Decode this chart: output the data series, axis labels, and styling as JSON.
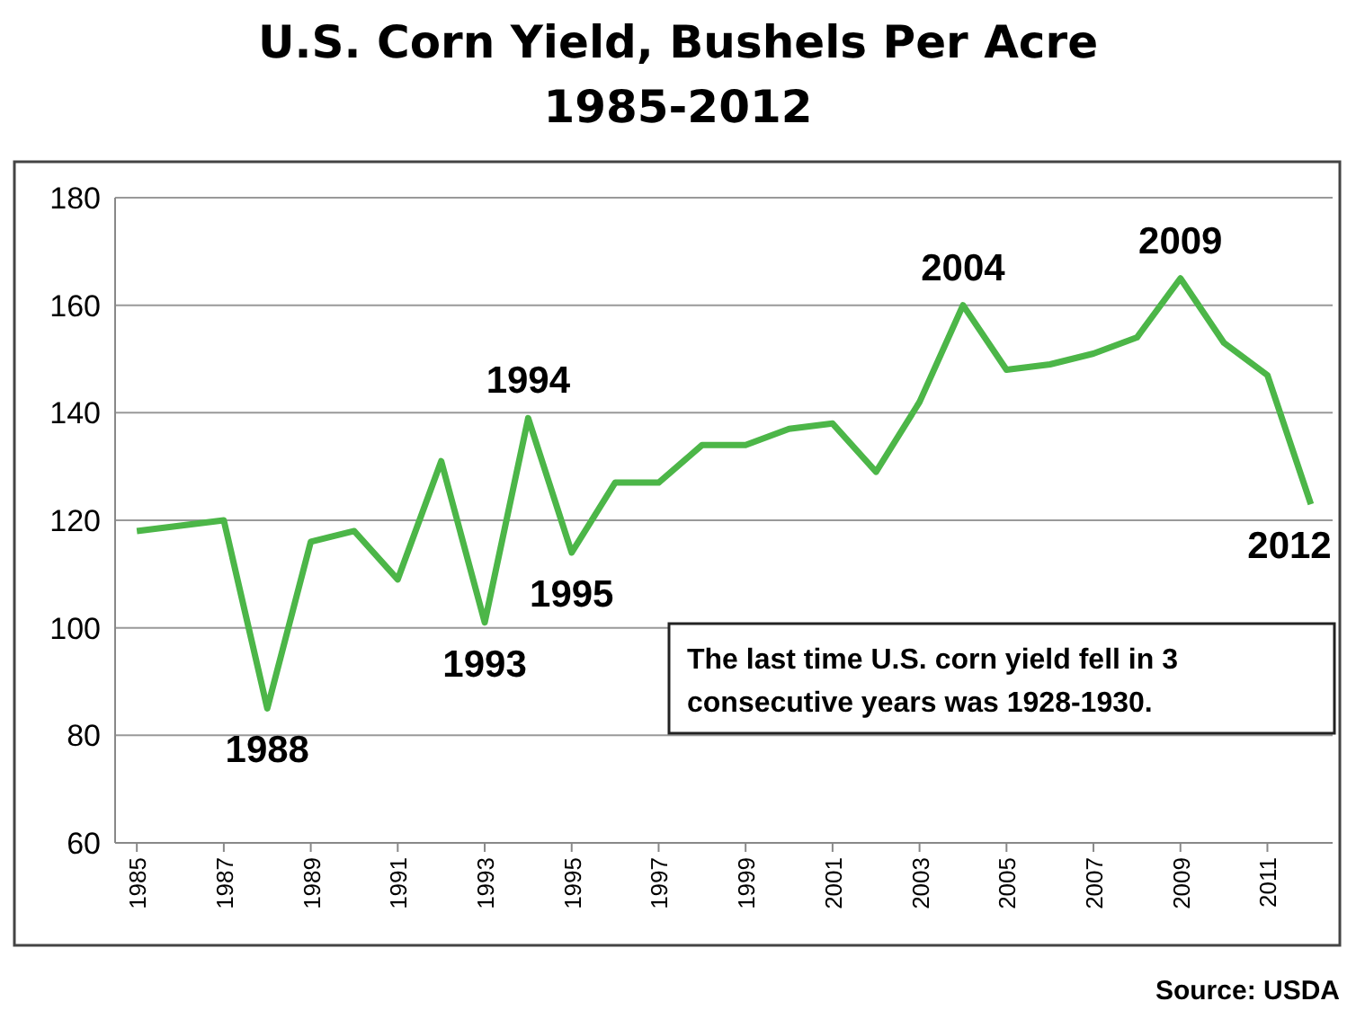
{
  "chart_data": {
    "type": "line",
    "title": "U.S. Corn Yield, Bushels Per Acre",
    "subtitle": "1985-2012",
    "x": [
      1985,
      1986,
      1987,
      1988,
      1989,
      1990,
      1991,
      1992,
      1993,
      1994,
      1995,
      1996,
      1997,
      1998,
      1999,
      2000,
      2001,
      2002,
      2003,
      2004,
      2005,
      2006,
      2007,
      2008,
      2009,
      2010,
      2011,
      2012
    ],
    "series": [
      {
        "color": "#4cb648",
        "values": [
          118,
          119,
          120,
          85,
          116,
          118,
          109,
          131,
          101,
          139,
          114,
          127,
          127,
          134,
          134,
          137,
          138,
          129,
          142,
          160,
          148,
          149,
          151,
          154,
          165,
          153,
          147,
          123
        ]
      }
    ],
    "xlim": [
      1984.5,
      2012.5
    ],
    "xticks": [
      1985,
      1987,
      1989,
      1991,
      1993,
      1995,
      1997,
      1999,
      2001,
      2003,
      2005,
      2007,
      2009,
      2011
    ],
    "ylim": [
      60,
      180
    ],
    "yticks": [
      60,
      80,
      100,
      120,
      140,
      160,
      180
    ],
    "grid": "y",
    "marker": "none",
    "line_style": "solid",
    "annotations": [
      {
        "text": "1988",
        "x": 1988,
        "y": 85
      },
      {
        "text": "1993",
        "x": 1993,
        "y": 101
      },
      {
        "text": "1994",
        "x": 1994,
        "y": 139
      },
      {
        "text": "1995",
        "x": 1995,
        "y": 114
      },
      {
        "text": "2004",
        "x": 2004,
        "y": 160
      },
      {
        "text": "2009",
        "x": 2009,
        "y": 165
      },
      {
        "text": "2012",
        "x": 2012,
        "y": 123
      },
      "The last time U.S. corn yield fell in 3 consecutive years was 1928-1930.",
      "Source: USDA"
    ]
  }
}
